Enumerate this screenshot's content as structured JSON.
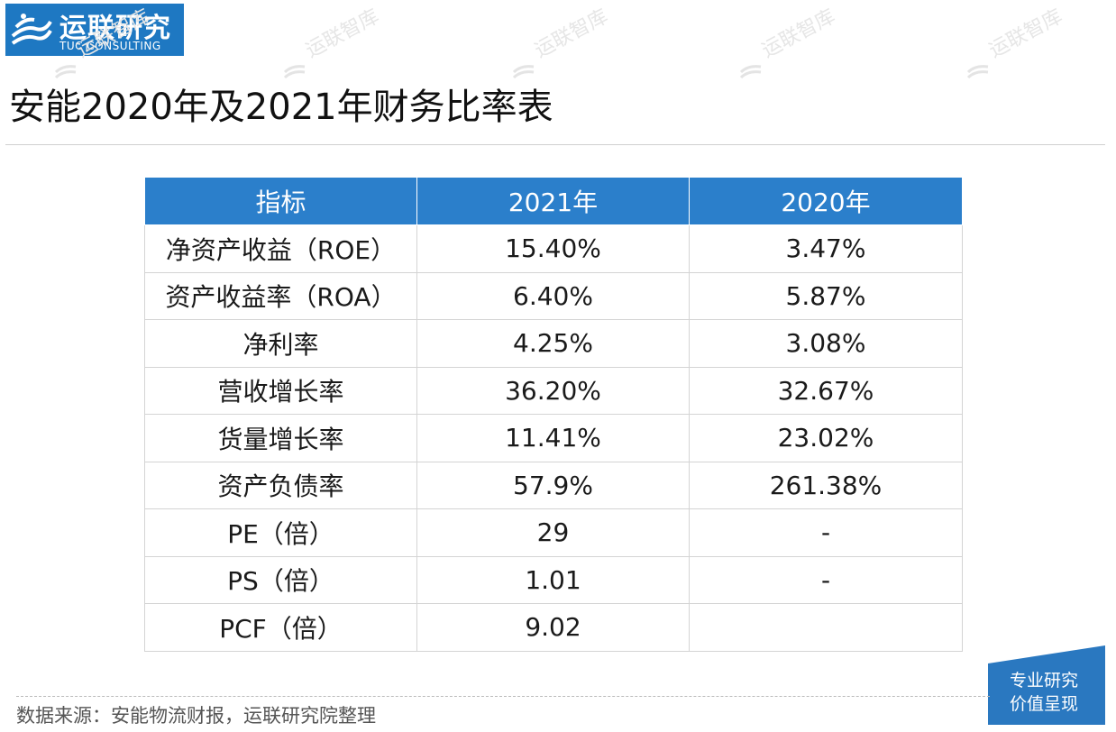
{
  "logo": {
    "cn": "运联研究",
    "en": "TUC CONSULTING"
  },
  "title": "安能2020年及2021年财务比率表",
  "watermark": "运联智库",
  "table": {
    "headers": [
      "指标",
      "2021年",
      "2020年"
    ],
    "rows": [
      [
        "净资产收益（ROE）",
        "15.40%",
        "3.47%"
      ],
      [
        "资产收益率（ROA）",
        "6.40%",
        "5.87%"
      ],
      [
        "净利率",
        "4.25%",
        "3.08%"
      ],
      [
        "营收增长率",
        "36.20%",
        "32.67%"
      ],
      [
        "货量增长率",
        "11.41%",
        "23.02%"
      ],
      [
        "资产负债率",
        "57.9%",
        "261.38%"
      ],
      [
        "PE（倍）",
        "29",
        "-"
      ],
      [
        "PS（倍）",
        "1.01",
        "-"
      ],
      [
        "PCF（倍）",
        "9.02",
        ""
      ]
    ]
  },
  "badge": {
    "line1": "专业研究",
    "line2": "价值呈现"
  },
  "source": "数据来源：安能物流财报，运联研究院整理",
  "colors": {
    "brand": "#1e78c2",
    "header": "#2b7fcb"
  }
}
